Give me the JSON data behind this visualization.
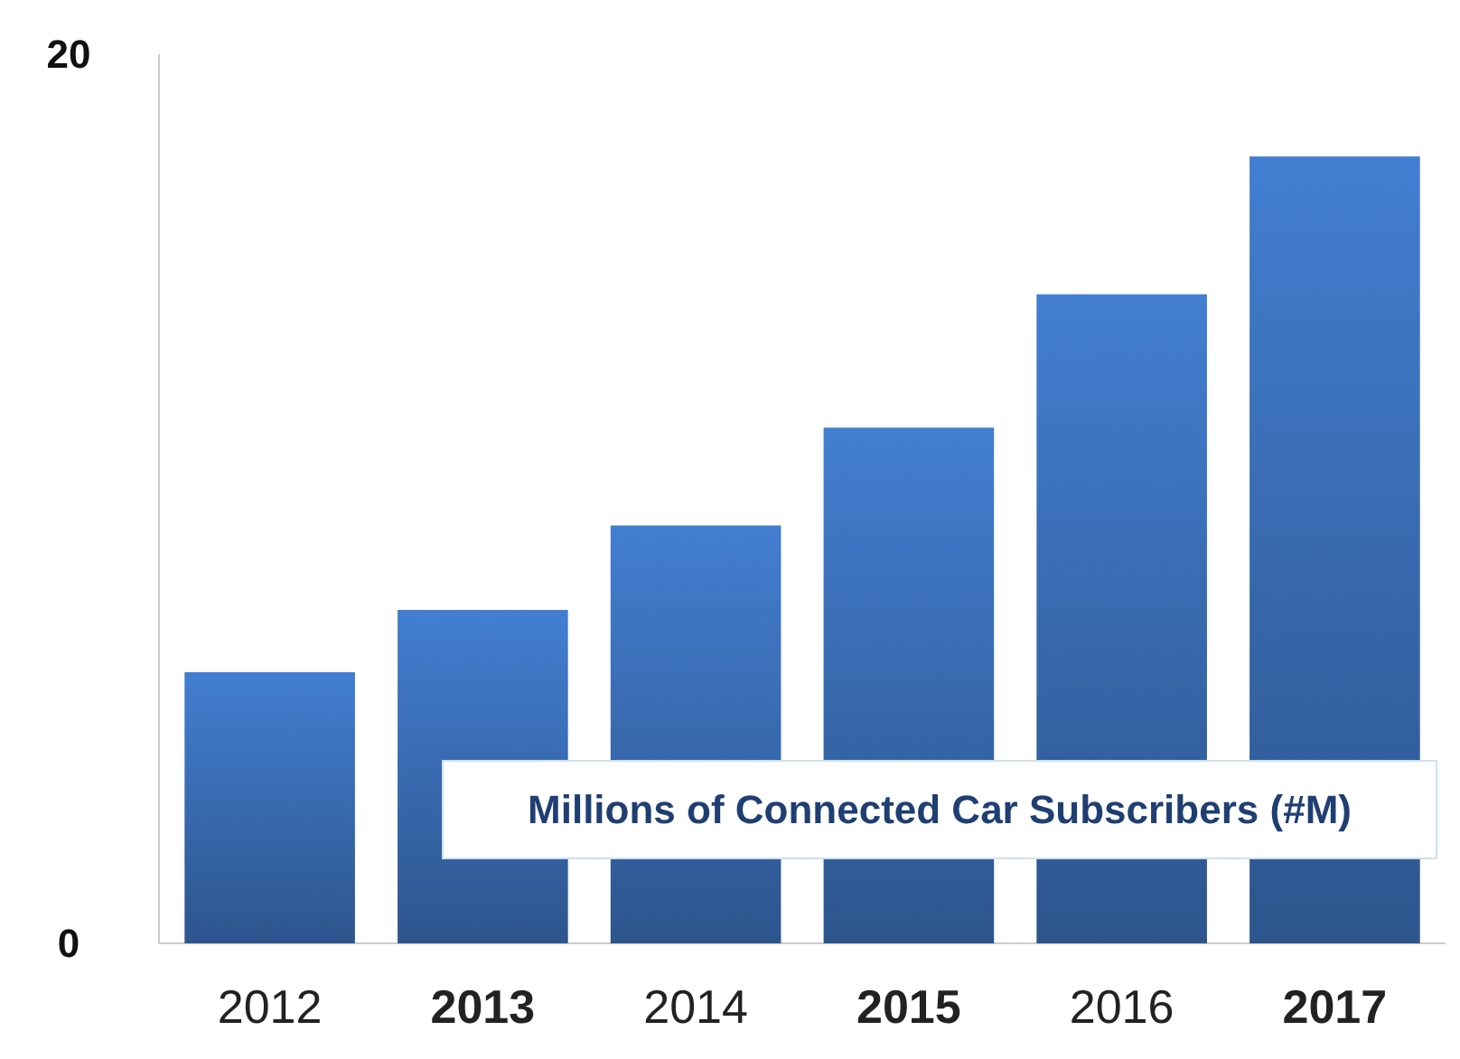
{
  "chart_data": {
    "type": "bar",
    "title": "Millions of Connected Car Subscribers (#M)",
    "categories": [
      "2012",
      "2013",
      "2014",
      "2015",
      "2016",
      "2017"
    ],
    "values": [
      6.1,
      7.5,
      9.4,
      11.6,
      14.6,
      17.7
    ],
    "color": "#3a6db5",
    "ylim": [
      0,
      20
    ],
    "yticks": [
      0,
      20
    ],
    "grid": false
  }
}
